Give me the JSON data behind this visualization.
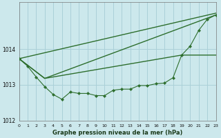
{
  "title": "Graphe pression niveau de la mer (hPa)",
  "background_color": "#cce8ec",
  "grid_color": "#aad0d8",
  "line_color": "#2d6e2d",
  "x_min": 0,
  "x_max": 23,
  "y_min": 1012,
  "y_max": 1015.3,
  "y_ticks": [
    1012,
    1013,
    1014
  ],
  "x_ticks": [
    0,
    1,
    2,
    3,
    4,
    5,
    6,
    7,
    8,
    9,
    10,
    11,
    12,
    13,
    14,
    15,
    16,
    17,
    18,
    19,
    20,
    21,
    22,
    23
  ],
  "series_main": [
    [
      0,
      1013.73
    ],
    [
      1,
      1013.52
    ],
    [
      2,
      1013.22
    ],
    [
      3,
      1012.95
    ],
    [
      4,
      1012.73
    ],
    [
      5,
      1012.6
    ],
    [
      6,
      1012.8
    ],
    [
      7,
      1012.76
    ],
    [
      8,
      1012.76
    ],
    [
      9,
      1012.7
    ],
    [
      10,
      1012.7
    ],
    [
      11,
      1012.85
    ],
    [
      12,
      1012.88
    ],
    [
      13,
      1012.88
    ],
    [
      14,
      1012.98
    ],
    [
      15,
      1012.98
    ],
    [
      16,
      1013.03
    ],
    [
      17,
      1013.05
    ],
    [
      18,
      1013.2
    ],
    [
      19,
      1013.83
    ],
    [
      20,
      1014.08
    ],
    [
      21,
      1014.52
    ],
    [
      22,
      1014.83
    ],
    [
      23,
      1014.95
    ]
  ],
  "series_line1": [
    [
      0,
      1013.73
    ],
    [
      23,
      1015.0
    ]
  ],
  "series_line2": [
    [
      0,
      1013.73
    ],
    [
      3,
      1013.18
    ],
    [
      23,
      1014.95
    ]
  ],
  "series_line3": [
    [
      0,
      1013.73
    ],
    [
      3,
      1013.18
    ],
    [
      19,
      1013.83
    ],
    [
      23,
      1013.83
    ]
  ]
}
